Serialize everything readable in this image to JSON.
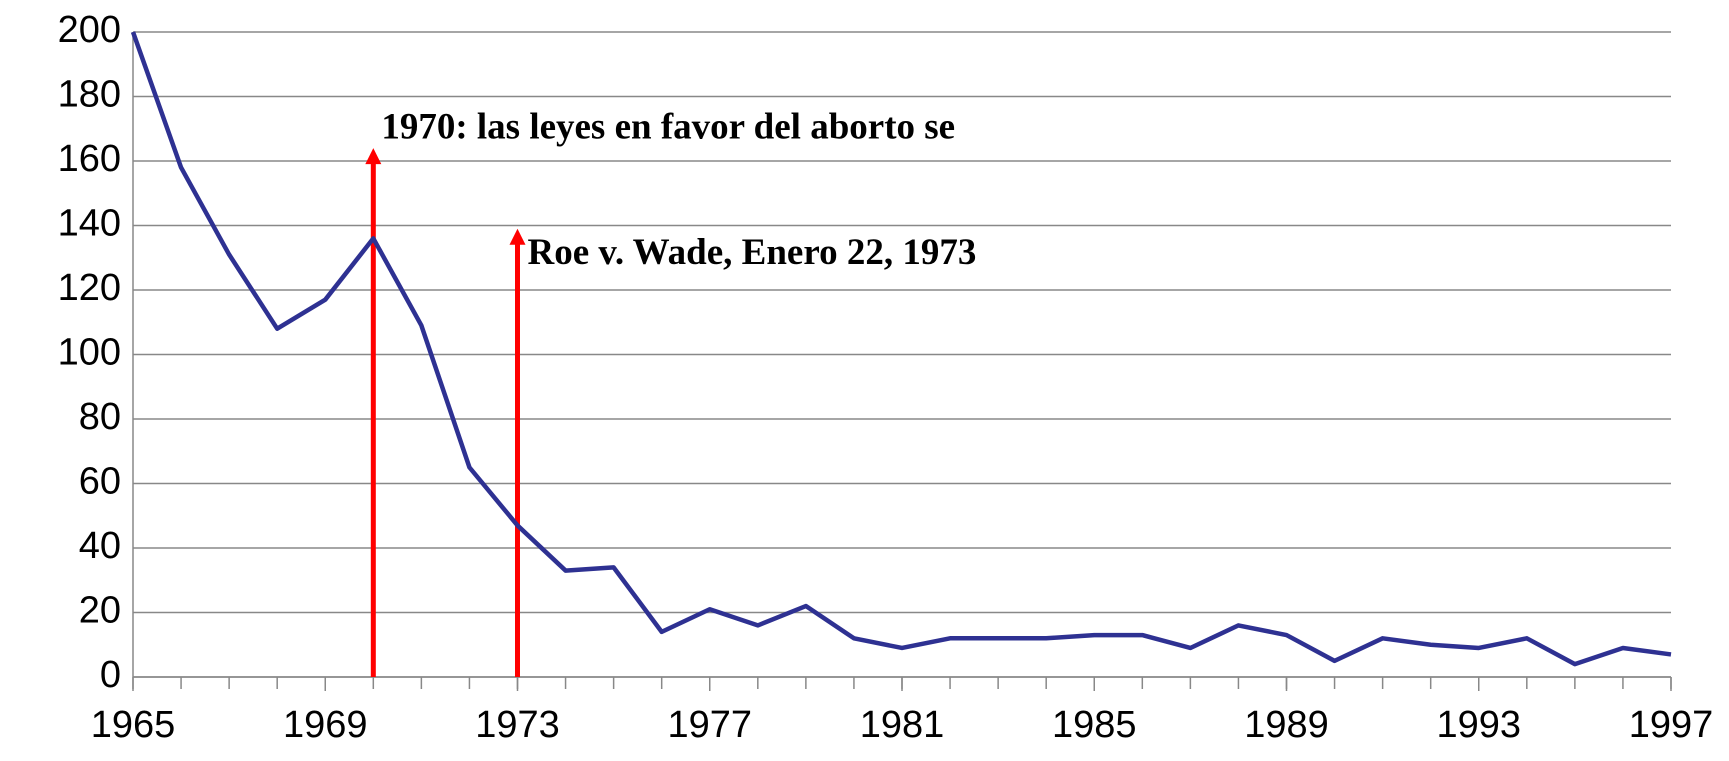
{
  "chart_data": {
    "type": "line",
    "x": [
      1965,
      1966,
      1967,
      1968,
      1969,
      1970,
      1971,
      1972,
      1973,
      1974,
      1975,
      1976,
      1977,
      1978,
      1979,
      1980,
      1981,
      1982,
      1983,
      1984,
      1985,
      1986,
      1987,
      1988,
      1989,
      1990,
      1991,
      1992,
      1993,
      1994,
      1995,
      1996,
      1997
    ],
    "series": [
      {
        "color": "#2e3192",
        "values": [
          200,
          158,
          131,
          108,
          117,
          136,
          109,
          65,
          47,
          33,
          34,
          14,
          21,
          16,
          22,
          12,
          9,
          12,
          12,
          12,
          13,
          13,
          9,
          16,
          13,
          5,
          12,
          10,
          9,
          12,
          4,
          9,
          7
        ]
      }
    ],
    "xlim": [
      1965,
      1997
    ],
    "xticks": [
      1965,
      1969,
      1973,
      1977,
      1981,
      1985,
      1989,
      1993,
      1997
    ],
    "ylim": [
      0,
      200
    ],
    "yticks": [
      0,
      20,
      40,
      60,
      80,
      100,
      120,
      140,
      160,
      180,
      200
    ],
    "grid": true,
    "annotations": [
      {
        "text": "1970: las leyes en favor del aborto se",
        "x": 1970,
        "y": 164,
        "color": "#ff0000"
      },
      {
        "text": "Roe v. Wade, Enero 22, 1973",
        "x": 1973,
        "y": 139,
        "color": "#ff0000"
      }
    ]
  }
}
